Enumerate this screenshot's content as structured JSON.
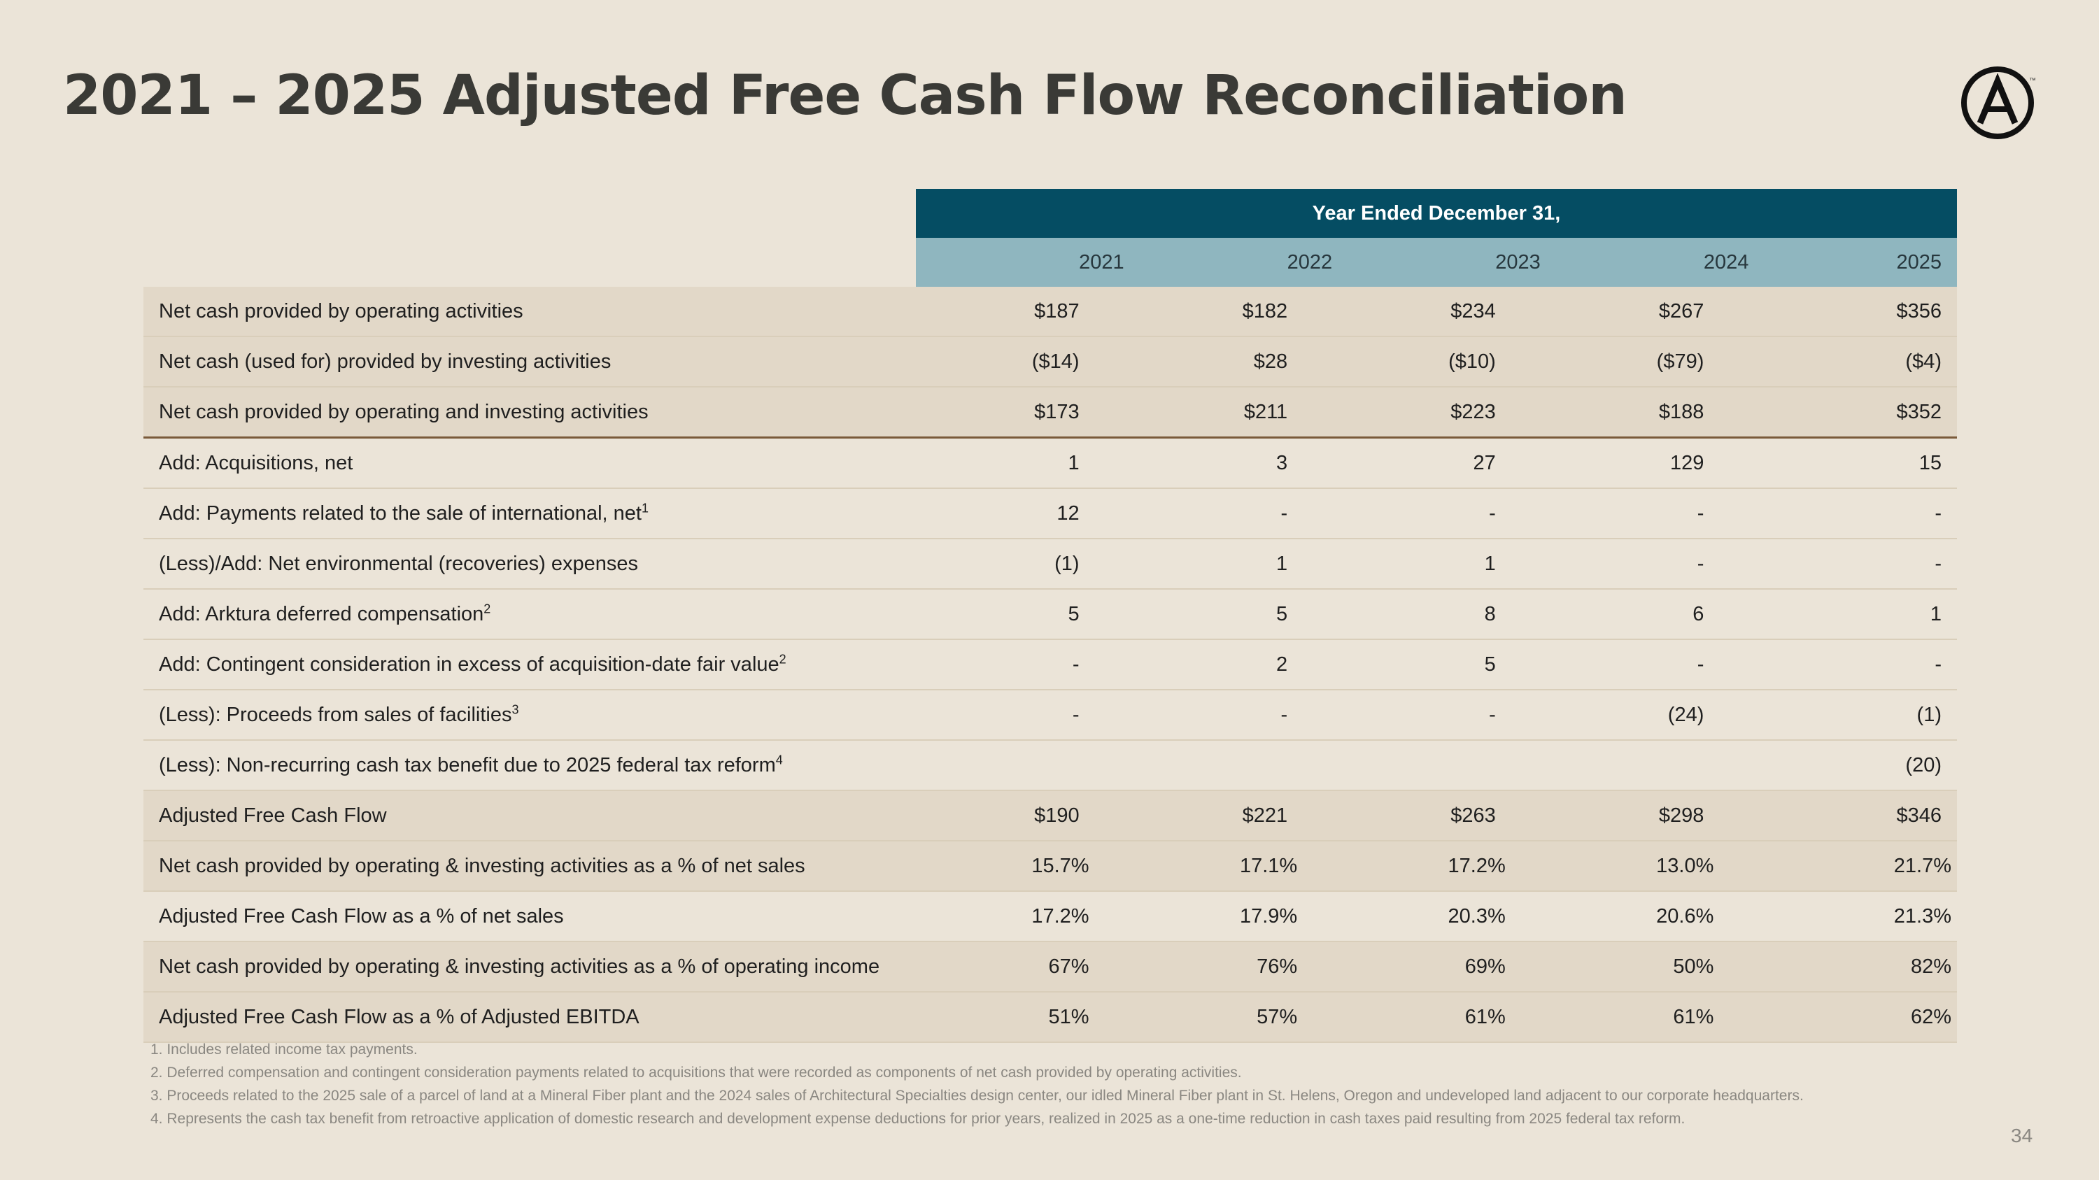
{
  "title": "2021 – 2025 Adjusted Free Cash Flow Reconciliation",
  "logo_icon": "armstrong-a-circle-icon",
  "table": {
    "group_header": "Year Ended December 31,",
    "years": [
      "2021",
      "2022",
      "2023",
      "2024",
      "2025"
    ],
    "rows": [
      {
        "label": "Net cash provided by operating activities",
        "sup": "",
        "values": [
          "$187",
          "$182",
          "$234",
          "$267",
          "$356"
        ]
      },
      {
        "label": "Net cash (used for) provided by investing activities",
        "sup": "",
        "values": [
          "($14)",
          "$28",
          "($10)",
          "($79)",
          "($4)"
        ]
      },
      {
        "label": "Net cash provided by operating and investing activities",
        "sup": "",
        "values": [
          "$173",
          "$211",
          "$223",
          "$188",
          "$352"
        ]
      },
      {
        "label": "Add: Acquisitions, net",
        "sup": "",
        "values": [
          "1",
          "3",
          "27",
          "129",
          "15"
        ]
      },
      {
        "label": "Add: Payments related to the sale of international, net",
        "sup": "1",
        "values": [
          "12",
          "-",
          "-",
          "-",
          "-"
        ]
      },
      {
        "label": "(Less)/Add: Net environmental (recoveries) expenses",
        "sup": "",
        "values": [
          "(1)",
          "1",
          "1",
          "-",
          "-"
        ]
      },
      {
        "label": "Add: Arktura deferred compensation",
        "sup": "2",
        "values": [
          "5",
          "5",
          "8",
          "6",
          "1"
        ]
      },
      {
        "label": "Add: Contingent consideration in excess of acquisition-date fair value",
        "sup": "2",
        "values": [
          "-",
          "2",
          "5",
          "-",
          "-"
        ]
      },
      {
        "label": "(Less): Proceeds from sales of facilities",
        "sup": "3",
        "values": [
          "-",
          "-",
          "-",
          "(24)",
          "(1)"
        ]
      },
      {
        "label": "(Less): Non-recurring cash tax benefit due to 2025 federal tax reform",
        "sup": "4",
        "values": [
          "",
          "",
          "",
          "",
          "(20)"
        ]
      },
      {
        "label": "Adjusted Free Cash Flow",
        "sup": "",
        "values": [
          "$190",
          "$221",
          "$263",
          "$298",
          "$346"
        ]
      },
      {
        "label": "Net cash provided by operating & investing activities as a % of net sales",
        "sup": "",
        "values": [
          "15.7%",
          "17.1%",
          "17.2%",
          "13.0%",
          "21.7%"
        ]
      },
      {
        "label": "Adjusted Free Cash Flow as a % of net sales",
        "sup": "",
        "values": [
          "17.2%",
          "17.9%",
          "20.3%",
          "20.6%",
          "21.3%"
        ]
      },
      {
        "label": "Net cash provided by operating & investing activities as a % of operating income",
        "sup": "",
        "values": [
          "67%",
          "76%",
          "69%",
          "50%",
          "82%"
        ]
      },
      {
        "label": "Adjusted Free Cash Flow as a % of Adjusted EBITDA",
        "sup": "",
        "values": [
          "51%",
          "57%",
          "61%",
          "61%",
          "62%"
        ]
      }
    ]
  },
  "footnotes": [
    "1. Includes related income tax payments.",
    "2. Deferred compensation and contingent consideration payments related to acquisitions that were recorded as components of net cash provided by operating activities.",
    "3. Proceeds related to the 2025 sale of a parcel of land at a Mineral Fiber plant and the 2024 sales of Architectural Specialties design center, our idled Mineral Fiber plant in St. Helens, Oregon and undeveloped land adjacent to our corporate headquarters.",
    "4. Represents the cash tax benefit from retroactive application of domestic research and development expense deductions for prior years, realized in 2025 as a one-time reduction in cash taxes paid resulting from 2025 federal tax reform."
  ],
  "page_number": "34",
  "colors": {
    "background": "#ebe4d8",
    "header_dark": "#054d63",
    "header_light": "#8fb6bf",
    "row_shade": "#e2d8c8",
    "title": "#3a3a36"
  }
}
